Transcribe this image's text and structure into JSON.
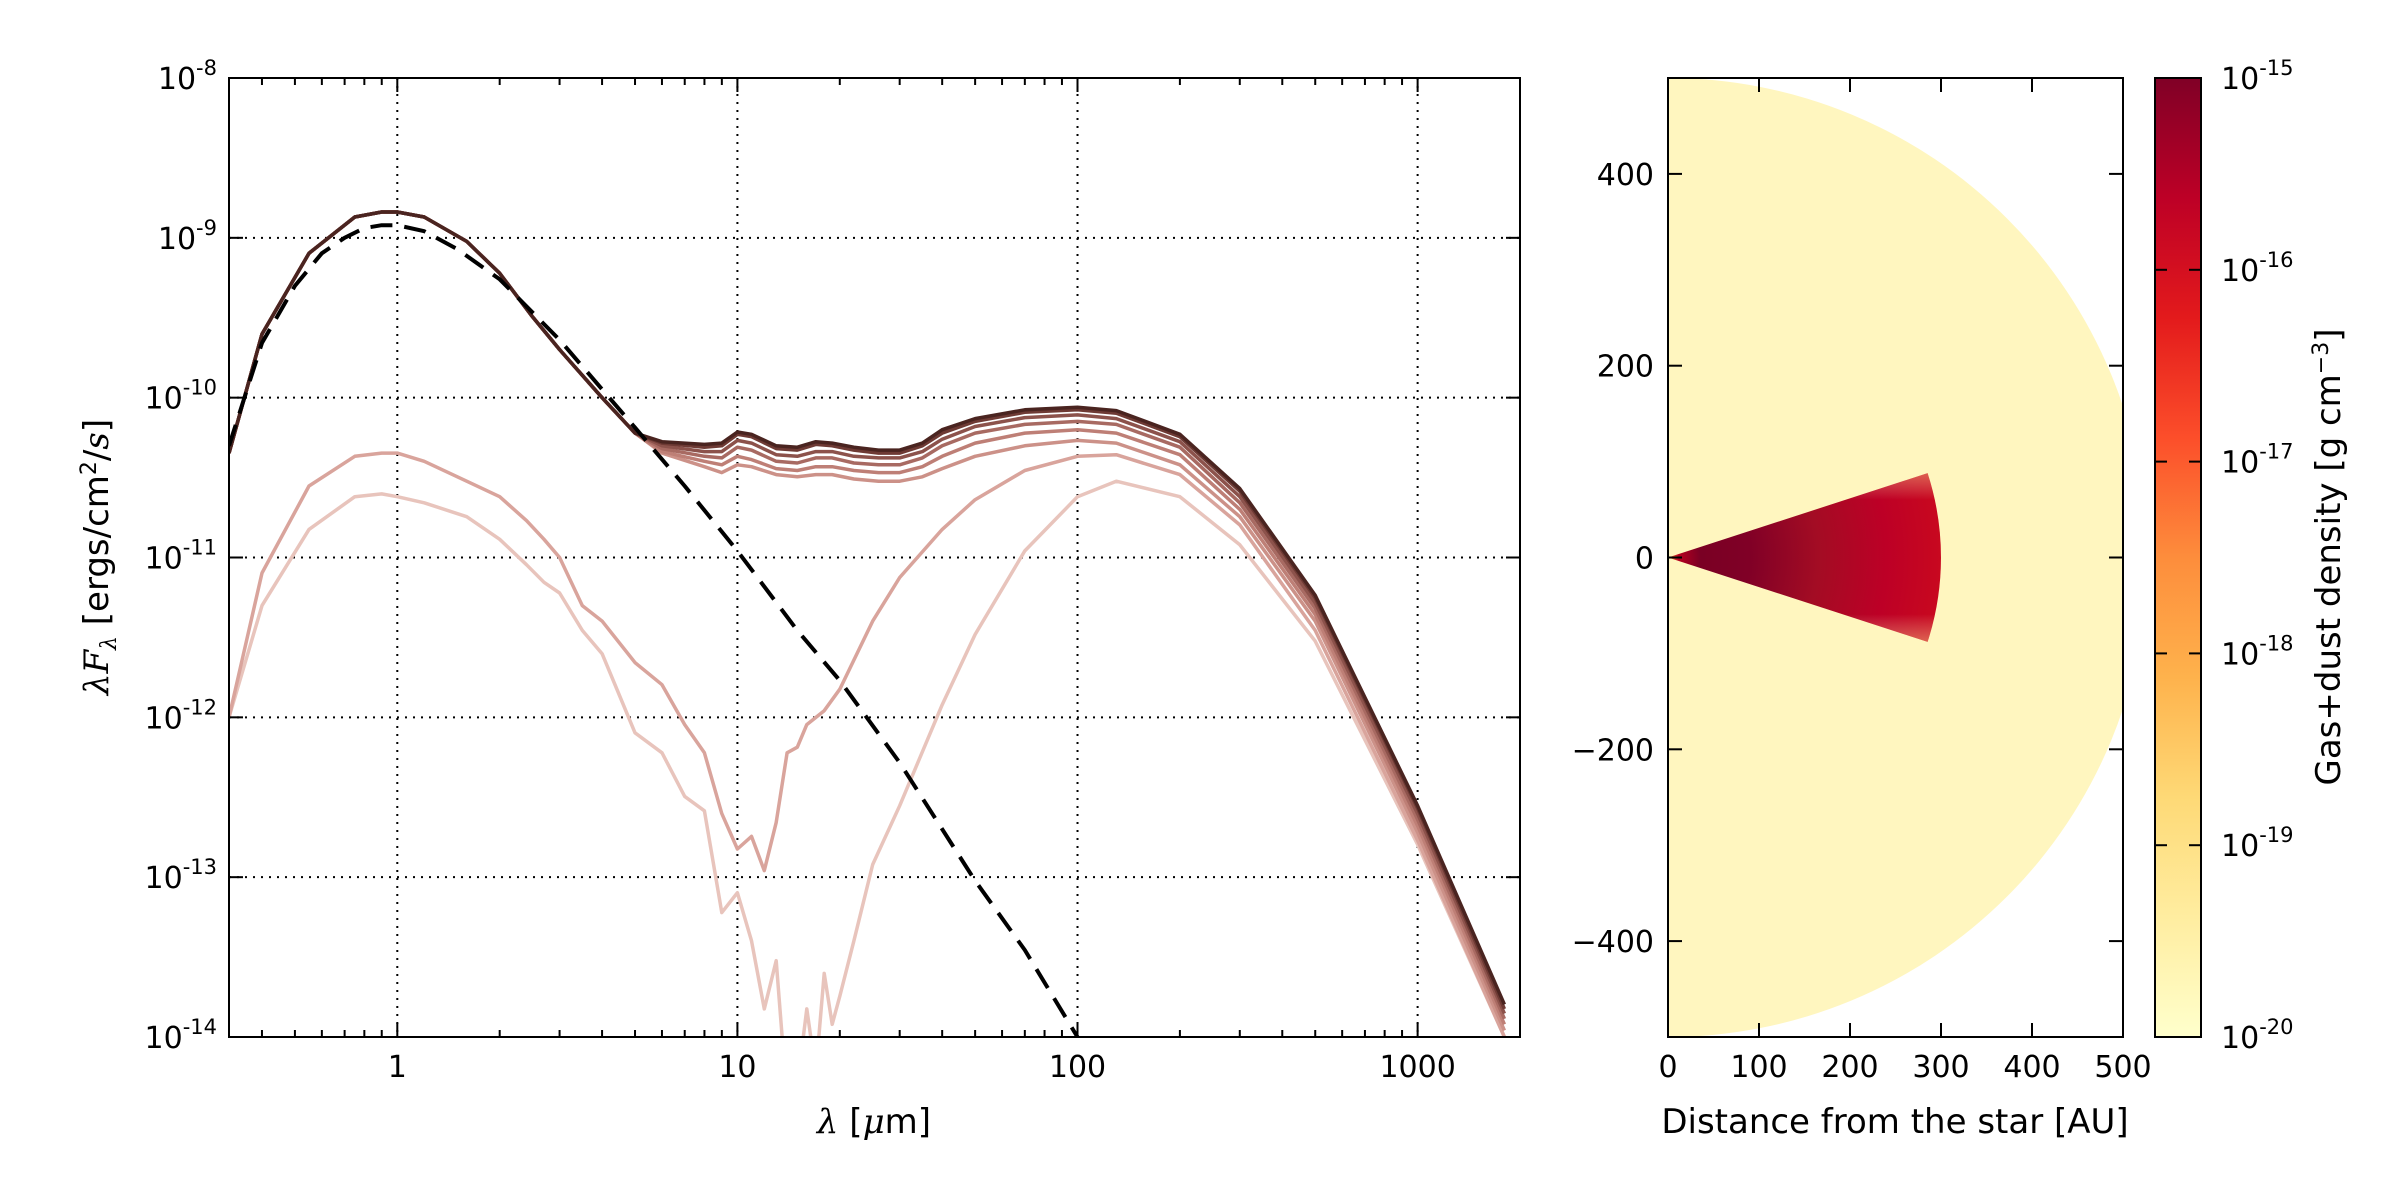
{
  "chart_data": [
    {
      "type": "line",
      "xlabel": "λ [μm]",
      "ylabel": "λF_λ [ergs/cm²/s]",
      "x_scale": "log",
      "y_scale": "log",
      "xlim": [
        0.32,
        2000
      ],
      "ylim": [
        1e-14,
        1e-08
      ],
      "grid": true,
      "x_ticks": [
        {
          "value": 1,
          "label": "1"
        },
        {
          "value": 10,
          "label": "10"
        },
        {
          "value": 100,
          "label": "100"
        },
        {
          "value": 1000,
          "label": "1000"
        }
      ],
      "y_ticks": [
        {
          "value": 1e-08,
          "base": "10",
          "exp": "-8"
        },
        {
          "value": 1e-09,
          "base": "10",
          "exp": "-9"
        },
        {
          "value": 1e-10,
          "base": "10",
          "exp": "-10"
        },
        {
          "value": 1e-11,
          "base": "10",
          "exp": "-11"
        },
        {
          "value": 1e-12,
          "base": "10",
          "exp": "-12"
        },
        {
          "value": 1e-13,
          "base": "10",
          "exp": "-13"
        },
        {
          "value": 1e-14,
          "base": "10",
          "exp": "-14"
        }
      ],
      "series": [
        {
          "color": "#e8c4bc",
          "style": "solid",
          "x": [
            0.32,
            0.4,
            0.55,
            0.75,
            0.9,
            1.0,
            1.2,
            1.6,
            2.0,
            2.4,
            2.7,
            3.0,
            3.5,
            4.0,
            5.0,
            6.0,
            7.0,
            8.0,
            9.0,
            10.0,
            11.0,
            12.0,
            13.0,
            14.0,
            15.0,
            16.0,
            17.0,
            18.0,
            19.0,
            20.0,
            22.0,
            25.0,
            30.0,
            40.0,
            50.0,
            70.0,
            100.0,
            130.0,
            200.0,
            300.0,
            500.0,
            1000.0,
            1800.0
          ],
          "y": [
            1e-12,
            5e-12,
            1.5e-11,
            2.4e-11,
            2.5e-11,
            2.4e-11,
            2.2e-11,
            1.8e-11,
            1.3e-11,
            9e-12,
            7e-12,
            6e-12,
            3.5e-12,
            2.5e-12,
            8e-13,
            6e-13,
            3.2e-13,
            2.6e-13,
            6e-14,
            8e-14,
            4e-14,
            1.5e-14,
            3e-14,
            4e-15,
            5e-15,
            1.5e-14,
            6e-15,
            2.5e-14,
            1.2e-14,
            1.8e-14,
            4e-14,
            1.2e-13,
            2.8e-13,
            1.2e-12,
            3.3e-12,
            1.1e-11,
            2.4e-11,
            3e-11,
            2.4e-11,
            1.2e-11,
            3e-12,
            1.6e-13,
            1e-14
          ]
        },
        {
          "color": "#d9a49c",
          "style": "solid",
          "x": [
            0.32,
            0.4,
            0.55,
            0.75,
            0.9,
            1.0,
            1.2,
            1.6,
            2.0,
            2.4,
            2.7,
            3.0,
            3.5,
            4.0,
            5.0,
            6.0,
            7.0,
            8.0,
            9.0,
            10.0,
            11.0,
            12.0,
            13.0,
            14.0,
            15.0,
            16.0,
            18.0,
            20.0,
            25.0,
            30.0,
            40.0,
            50.0,
            70.0,
            100.0,
            130.0,
            200.0,
            300.0,
            500.0,
            1000.0,
            1800.0
          ],
          "y": [
            1e-12,
            8e-12,
            2.8e-11,
            4.3e-11,
            4.5e-11,
            4.5e-11,
            4e-11,
            3e-11,
            2.4e-11,
            1.7e-11,
            1.3e-11,
            1e-11,
            5e-12,
            4e-12,
            2.2e-12,
            1.6e-12,
            9e-13,
            6e-13,
            2.5e-13,
            1.5e-13,
            1.8e-13,
            1.1e-13,
            2.2e-13,
            6e-13,
            6.5e-13,
            9e-13,
            1.1e-12,
            1.5e-12,
            4e-12,
            7.5e-12,
            1.5e-11,
            2.3e-11,
            3.5e-11,
            4.3e-11,
            4.4e-11,
            3.3e-11,
            1.6e-11,
            3.5e-12,
            1.7e-13,
            1e-14
          ]
        },
        {
          "color": "#cc9188",
          "style": "solid",
          "x": [
            0.32,
            0.4,
            0.55,
            0.75,
            0.9,
            1.0,
            1.2,
            1.6,
            2.0,
            2.5,
            3.0,
            4.0,
            5.0,
            6.0,
            8.0,
            9.0,
            10.0,
            11.0,
            13.0,
            15.0,
            17.0,
            19.0,
            22.0,
            26.0,
            30.0,
            35.0,
            40.0,
            50.0,
            70.0,
            100.0,
            130.0,
            200.0,
            300.0,
            500.0,
            1000.0,
            1800.0
          ],
          "y": [
            4.5e-11,
            2.5e-10,
            8e-10,
            1.35e-09,
            1.45e-09,
            1.45e-09,
            1.35e-09,
            9.5e-10,
            6e-10,
            3.2e-10,
            2e-10,
            1e-10,
            6e-11,
            4.5e-11,
            3.7e-11,
            3.4e-11,
            3.8e-11,
            3.7e-11,
            3.3e-11,
            3.2e-11,
            3.3e-11,
            3.3e-11,
            3.1e-11,
            3e-11,
            3e-11,
            3.2e-11,
            3.6e-11,
            4.3e-11,
            5e-11,
            5.4e-11,
            5.2e-11,
            3.8e-11,
            1.8e-11,
            4e-12,
            1.9e-13,
            1.1e-14
          ]
        },
        {
          "color": "#be7f76",
          "style": "solid",
          "x": [
            0.32,
            0.4,
            0.55,
            0.75,
            0.9,
            1.0,
            1.2,
            1.6,
            2.0,
            2.5,
            3.0,
            4.0,
            5.0,
            6.0,
            8.0,
            9.0,
            10.0,
            11.0,
            13.0,
            15.0,
            17.0,
            19.0,
            22.0,
            26.0,
            30.0,
            35.0,
            40.0,
            50.0,
            70.0,
            100.0,
            130.0,
            200.0,
            300.0,
            500.0,
            1000.0,
            1800.0
          ],
          "y": [
            4.5e-11,
            2.5e-10,
            8e-10,
            1.35e-09,
            1.45e-09,
            1.45e-09,
            1.35e-09,
            9.5e-10,
            6e-10,
            3.2e-10,
            2e-10,
            1e-10,
            6e-11,
            4.6e-11,
            4e-11,
            3.8e-11,
            4.3e-11,
            4.1e-11,
            3.6e-11,
            3.5e-11,
            3.7e-11,
            3.7e-11,
            3.5e-11,
            3.4e-11,
            3.4e-11,
            3.7e-11,
            4.3e-11,
            5.2e-11,
            6e-11,
            6.3e-11,
            6e-11,
            4.4e-11,
            2e-11,
            4.4e-12,
            2.1e-13,
            1.2e-14
          ]
        },
        {
          "color": "#a86a62",
          "style": "solid",
          "x": [
            0.32,
            0.4,
            0.55,
            0.75,
            0.9,
            1.0,
            1.2,
            1.6,
            2.0,
            2.5,
            3.0,
            4.0,
            5.0,
            6.0,
            8.0,
            9.0,
            10.0,
            11.0,
            13.0,
            15.0,
            17.0,
            19.0,
            22.0,
            26.0,
            30.0,
            35.0,
            40.0,
            50.0,
            70.0,
            100.0,
            130.0,
            200.0,
            300.0,
            500.0,
            1000.0,
            1800.0
          ],
          "y": [
            4.5e-11,
            2.5e-10,
            8e-10,
            1.35e-09,
            1.45e-09,
            1.45e-09,
            1.35e-09,
            9.5e-10,
            6e-10,
            3.2e-10,
            2e-10,
            1e-10,
            6e-11,
            4.8e-11,
            4.3e-11,
            4.2e-11,
            4.9e-11,
            4.7e-11,
            4e-11,
            3.9e-11,
            4.2e-11,
            4.2e-11,
            3.9e-11,
            3.8e-11,
            3.8e-11,
            4.2e-11,
            5e-11,
            6e-11,
            6.8e-11,
            7.1e-11,
            6.8e-11,
            4.9e-11,
            2.2e-11,
            4.8e-12,
            2.3e-13,
            1.3e-14
          ]
        },
        {
          "color": "#8c524b",
          "style": "solid",
          "x": [
            0.32,
            0.4,
            0.55,
            0.75,
            0.9,
            1.0,
            1.2,
            1.6,
            2.0,
            2.5,
            3.0,
            4.0,
            5.0,
            6.0,
            8.0,
            9.0,
            10.0,
            11.0,
            13.0,
            15.0,
            17.0,
            19.0,
            22.0,
            26.0,
            30.0,
            35.0,
            40.0,
            50.0,
            70.0,
            100.0,
            130.0,
            200.0,
            300.0,
            500.0,
            1000.0,
            1800.0
          ],
          "y": [
            4.5e-11,
            2.5e-10,
            8e-10,
            1.35e-09,
            1.45e-09,
            1.45e-09,
            1.35e-09,
            9.5e-10,
            6e-10,
            3.2e-10,
            2e-10,
            1e-10,
            6e-11,
            5e-11,
            4.6e-11,
            4.6e-11,
            5.4e-11,
            5.2e-11,
            4.4e-11,
            4.3e-11,
            4.6e-11,
            4.6e-11,
            4.3e-11,
            4.2e-11,
            4.2e-11,
            4.6e-11,
            5.5e-11,
            6.6e-11,
            7.5e-11,
            7.8e-11,
            7.4e-11,
            5.3e-11,
            2.4e-11,
            5.2e-12,
            2.5e-13,
            1.4e-14
          ]
        },
        {
          "color": "#6e3a34",
          "style": "solid",
          "x": [
            0.32,
            0.4,
            0.55,
            0.75,
            0.9,
            1.0,
            1.2,
            1.6,
            2.0,
            2.5,
            3.0,
            4.0,
            5.0,
            6.0,
            8.0,
            9.0,
            10.0,
            11.0,
            13.0,
            15.0,
            17.0,
            19.0,
            22.0,
            26.0,
            30.0,
            35.0,
            40.0,
            50.0,
            70.0,
            100.0,
            130.0,
            200.0,
            300.0,
            500.0,
            1000.0,
            1800.0
          ],
          "y": [
            4.5e-11,
            2.5e-10,
            8e-10,
            1.35e-09,
            1.45e-09,
            1.45e-09,
            1.35e-09,
            9.5e-10,
            6e-10,
            3.2e-10,
            2e-10,
            1e-10,
            6e-11,
            5.2e-11,
            4.9e-11,
            5e-11,
            5.9e-11,
            5.7e-11,
            4.8e-11,
            4.7e-11,
            5.1e-11,
            5e-11,
            4.7e-11,
            4.5e-11,
            4.5e-11,
            5e-11,
            6e-11,
            7.1e-11,
            8.1e-11,
            8.4e-11,
            8e-11,
            5.7e-11,
            2.6e-11,
            5.6e-12,
            2.7e-13,
            1.5e-14
          ]
        },
        {
          "color": "#4a2420",
          "style": "solid",
          "x": [
            0.32,
            0.4,
            0.55,
            0.75,
            0.9,
            1.0,
            1.2,
            1.6,
            2.0,
            2.5,
            3.0,
            4.0,
            5.0,
            6.0,
            8.0,
            9.0,
            10.0,
            11.0,
            13.0,
            15.0,
            17.0,
            19.0,
            22.0,
            26.0,
            30.0,
            35.0,
            40.0,
            50.0,
            70.0,
            100.0,
            130.0,
            200.0,
            300.0,
            500.0,
            1000.0,
            1800.0
          ],
          "y": [
            4.5e-11,
            2.5e-10,
            8e-10,
            1.35e-09,
            1.45e-09,
            1.45e-09,
            1.35e-09,
            9.5e-10,
            6e-10,
            3.2e-10,
            2e-10,
            1e-10,
            6e-11,
            5.3e-11,
            5.1e-11,
            5.2e-11,
            6.1e-11,
            5.9e-11,
            5e-11,
            4.9e-11,
            5.3e-11,
            5.2e-11,
            4.9e-11,
            4.7e-11,
            4.7e-11,
            5.2e-11,
            6.3e-11,
            7.4e-11,
            8.4e-11,
            8.7e-11,
            8.3e-11,
            5.9e-11,
            2.7e-11,
            5.8e-12,
            2.8e-13,
            1.6e-14
          ]
        },
        {
          "color": "#000000",
          "style": "dashed",
          "x": [
            0.32,
            0.4,
            0.5,
            0.6,
            0.7,
            0.8,
            0.9,
            1.0,
            1.2,
            1.5,
            2.0,
            3.0,
            5.0,
            7.0,
            10.0,
            15.0,
            20.0,
            30.0,
            50.0,
            70.0,
            100.0
          ],
          "y": [
            5e-11,
            2.2e-10,
            5e-10,
            8e-10,
            1e-09,
            1.15e-09,
            1.2e-09,
            1.2e-09,
            1.1e-09,
            8.5e-10,
            5.5e-10,
            2.3e-10,
            6.5e-11,
            2.8e-11,
            1.1e-11,
            3.5e-12,
            1.7e-12,
            5.2e-13,
            9.5e-14,
            3.5e-14,
            1e-14
          ]
        }
      ]
    },
    {
      "type": "heatmap",
      "xlabel": "Distance from the star [AU]",
      "xlim": [
        0,
        500
      ],
      "ylim": [
        -500,
        500
      ],
      "x_ticks": [
        "0",
        "100",
        "200",
        "300",
        "400",
        "500"
      ],
      "y_ticks": [
        "400",
        "200",
        "0",
        "−200",
        "−400"
      ],
      "description_values": {
        "envelope_radius_au": 500,
        "disk_outer_radius_au": 300,
        "disk_half_opening_deg": 18,
        "background_density_g_cm3": 1e-20,
        "peak_density_g_cm3": 1e-15
      },
      "colorbar": {
        "label_main": "Gas+dust density [g cm",
        "label_exp": "−3",
        "label_close": "]",
        "scale": "log",
        "range": [
          1e-20,
          1e-15
        ],
        "colors": [
          "#ffffcc",
          "#ffeda0",
          "#fed976",
          "#feb24c",
          "#fd8d3c",
          "#fc4e2a",
          "#e31a1c",
          "#bd0026",
          "#800026"
        ],
        "ticks": [
          {
            "value": 1e-15,
            "base": "10",
            "exp": "-15"
          },
          {
            "value": 1e-16,
            "base": "10",
            "exp": "-16"
          },
          {
            "value": 1e-17,
            "base": "10",
            "exp": "-17"
          },
          {
            "value": 1e-18,
            "base": "10",
            "exp": "-18"
          },
          {
            "value": 1e-19,
            "base": "10",
            "exp": "-19"
          },
          {
            "value": 1e-20,
            "base": "10",
            "exp": "-20"
          }
        ]
      }
    }
  ]
}
